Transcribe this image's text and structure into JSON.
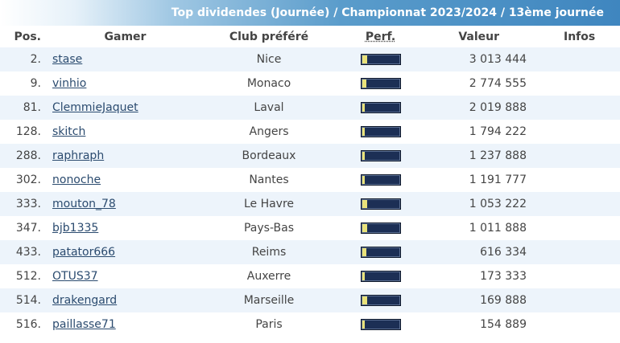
{
  "banner": {
    "title": "Top dividendes (Journée) / Championnat 2023/2024 / 13ème journée"
  },
  "headers": {
    "pos": "Pos.",
    "gamer": "Gamer",
    "club": "Club préféré",
    "perf": "Perf.",
    "valeur": "Valeur",
    "infos": "Infos"
  },
  "rows": [
    {
      "pos": "2.",
      "gamer": "stase",
      "club": "Nice",
      "perf": 0.12,
      "valeur": "3 013 444"
    },
    {
      "pos": "9.",
      "gamer": "vinhio",
      "club": "Monaco",
      "perf": 0.1,
      "valeur": "2 774 555"
    },
    {
      "pos": "81.",
      "gamer": "ClemmieJaquet",
      "club": "Laval",
      "perf": 0.04,
      "valeur": "2 019 888"
    },
    {
      "pos": "128.",
      "gamer": "skitch",
      "club": "Angers",
      "perf": 0.04,
      "valeur": "1 794 222"
    },
    {
      "pos": "288.",
      "gamer": "raphraph",
      "club": "Bordeaux",
      "perf": 0.04,
      "valeur": "1 237 888"
    },
    {
      "pos": "302.",
      "gamer": "nonoche",
      "club": "Nantes",
      "perf": 0.04,
      "valeur": "1 191 777"
    },
    {
      "pos": "333.",
      "gamer": "mouton_78",
      "club": "Le Havre",
      "perf": 0.12,
      "valeur": "1 053 222"
    },
    {
      "pos": "347.",
      "gamer": "bjb1335",
      "club": "Pays-Bas",
      "perf": 0.12,
      "valeur": "1 011 888"
    },
    {
      "pos": "433.",
      "gamer": "patator666",
      "club": "Reims",
      "perf": 0.1,
      "valeur": "616 334"
    },
    {
      "pos": "512.",
      "gamer": "OTUS37",
      "club": "Auxerre",
      "perf": 0.06,
      "valeur": "173 333"
    },
    {
      "pos": "514.",
      "gamer": "drakengard",
      "club": "Marseille",
      "perf": 0.12,
      "valeur": "169 888"
    },
    {
      "pos": "516.",
      "gamer": "paillasse71",
      "club": "Paris",
      "perf": 0.04,
      "valeur": "154 889"
    }
  ]
}
